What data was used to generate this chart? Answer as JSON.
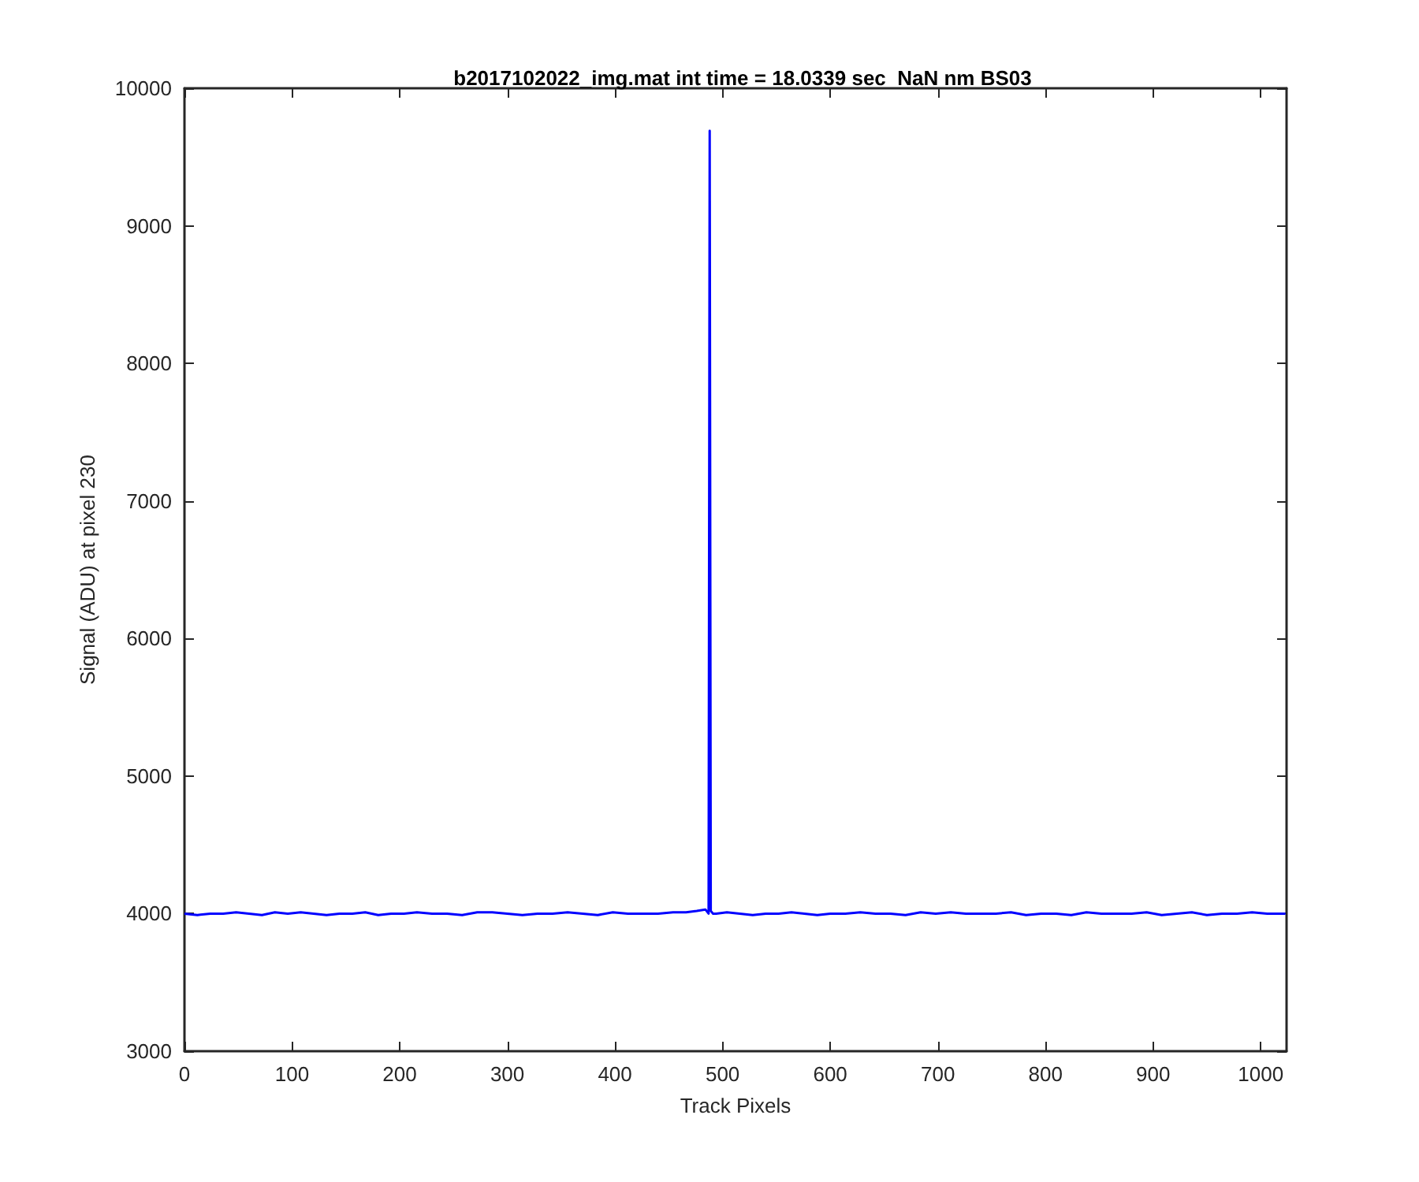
{
  "chart_data": {
    "type": "line",
    "title": "b2017102022_img.mat int time = 18.0339 sec  NaN nm BS03",
    "xlabel": "Track Pixels",
    "ylabel": "Signal (ADU) at pixel 230",
    "series": [
      {
        "color": "#0000ff",
        "x": [
          0,
          12,
          24,
          36,
          48,
          60,
          72,
          84,
          96,
          108,
          120,
          132,
          144,
          156,
          168,
          180,
          192,
          204,
          216,
          230,
          244,
          258,
          272,
          286,
          300,
          314,
          328,
          342,
          356,
          370,
          384,
          398,
          412,
          426,
          440,
          454,
          466,
          476,
          484,
          487,
          488,
          489,
          490,
          491,
          494,
          504,
          516,
          528,
          540,
          552,
          564,
          576,
          588,
          600,
          614,
          628,
          642,
          656,
          670,
          684,
          698,
          712,
          726,
          740,
          754,
          768,
          782,
          796,
          810,
          824,
          838,
          852,
          866,
          880,
          894,
          908,
          922,
          936,
          950,
          964,
          978,
          992,
          1006,
          1023
        ],
        "values": [
          4000,
          3990,
          4000,
          4000,
          4010,
          4000,
          3990,
          4010,
          4000,
          4010,
          4000,
          3990,
          4000,
          4000,
          4010,
          3990,
          4000,
          4000,
          4010,
          4000,
          4000,
          3990,
          4010,
          4010,
          4000,
          3990,
          4000,
          4000,
          4010,
          4000,
          3990,
          4010,
          4000,
          4000,
          4000,
          4010,
          4010,
          4020,
          4030,
          4000,
          9690,
          4020,
          4010,
          4000,
          4000,
          4010,
          4000,
          3990,
          4000,
          4000,
          4010,
          4000,
          3990,
          4000,
          4000,
          4010,
          4000,
          4000,
          3990,
          4010,
          4000,
          4010,
          4000,
          4000,
          4000,
          4010,
          3990,
          4000,
          4000,
          3990,
          4010,
          4000,
          4000,
          4000,
          4010,
          3990,
          4000,
          4010,
          3990,
          4000,
          4000,
          4010,
          4000,
          4000
        ]
      }
    ],
    "xlim": [
      0,
      1024
    ],
    "xticks": [
      0,
      100,
      200,
      300,
      400,
      500,
      600,
      700,
      800,
      900,
      1000
    ],
    "ylim": [
      3000,
      10000
    ],
    "yticks": [
      3000,
      4000,
      5000,
      6000,
      7000,
      8000,
      9000,
      10000
    ],
    "grid": false,
    "marker": "none",
    "line_style": "solid"
  }
}
